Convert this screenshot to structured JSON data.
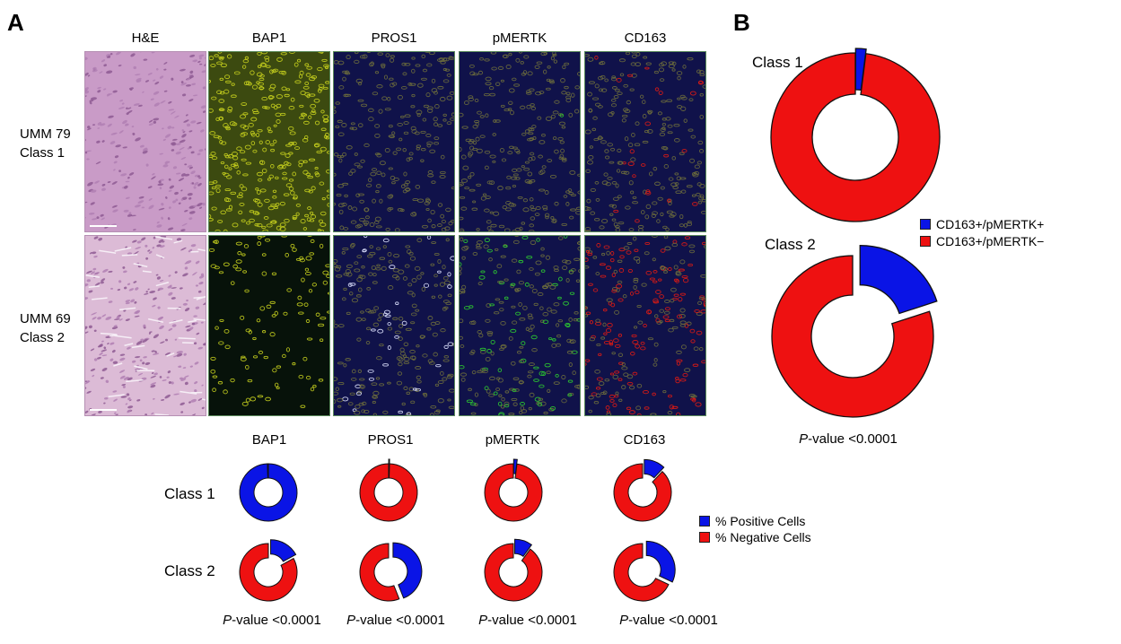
{
  "panel_a": {
    "letter": "A",
    "column_headers": [
      "H&E",
      "BAP1",
      "PROS1",
      "pMERTK",
      "CD163"
    ],
    "row_labels": [
      {
        "line1": "UMM 79",
        "line2": "Class 1"
      },
      {
        "line1": "UMM 69",
        "line2": "Class 2"
      }
    ],
    "donut_headers": [
      "BAP1",
      "PROS1",
      "pMERTK",
      "CD163"
    ],
    "class_labels": [
      "Class 1",
      "Class 2"
    ],
    "legend": [
      {
        "label": "% Positive Cells",
        "color": "#0a14e6"
      },
      {
        "label": "% Negative Cells",
        "color": "#ee1111"
      }
    ],
    "pvalues": [
      {
        "italic": "P",
        "rest": "-value <0.0001"
      },
      {
        "italic": "P",
        "rest": "-value <0.0001"
      },
      {
        "italic": "P",
        "rest": "-value <0.0001"
      },
      {
        "italic": "P",
        "rest": "-value <0.0001"
      }
    ]
  },
  "panel_b": {
    "letter": "B",
    "class_labels": [
      "Class 1",
      "Class 2"
    ],
    "legend": [
      {
        "label": "CD163+/pMERTK+",
        "color": "#0a14e6"
      },
      {
        "label": "CD163+/pMERTK−",
        "color": "#ee1111"
      }
    ],
    "pvalue": {
      "italic": "P",
      "rest": "-value <0.0001"
    }
  },
  "colors": {
    "positive": "#0a14e6",
    "negative": "#ee1111"
  },
  "chart_data": [
    {
      "type": "pie",
      "name": "BAP1 Class 1",
      "values": [
        99.5,
        0.5
      ],
      "labels": [
        "% Positive Cells",
        "% Negative Cells"
      ]
    },
    {
      "type": "pie",
      "name": "PROS1 Class 1",
      "values": [
        0.5,
        99.5
      ],
      "labels": [
        "% Positive Cells",
        "% Negative Cells"
      ]
    },
    {
      "type": "pie",
      "name": "pMERTK Class 1",
      "values": [
        2,
        98
      ],
      "labels": [
        "% Positive Cells",
        "% Negative Cells"
      ]
    },
    {
      "type": "pie",
      "name": "CD163 Class 1",
      "values": [
        12,
        88
      ],
      "labels": [
        "% Positive Cells",
        "% Negative Cells"
      ]
    },
    {
      "type": "pie",
      "name": "BAP1 Class 2",
      "values": [
        17,
        83
      ],
      "labels": [
        "% Positive Cells",
        "% Negative Cells"
      ]
    },
    {
      "type": "pie",
      "name": "PROS1 Class 2",
      "values": [
        44,
        56
      ],
      "labels": [
        "% Positive Cells",
        "% Negative Cells"
      ]
    },
    {
      "type": "pie",
      "name": "pMERTK Class 2",
      "values": [
        10,
        90
      ],
      "labels": [
        "% Positive Cells",
        "% Negative Cells"
      ]
    },
    {
      "type": "pie",
      "name": "CD163 Class 2",
      "values": [
        32,
        68
      ],
      "labels": [
        "% Positive Cells",
        "% Negative Cells"
      ]
    },
    {
      "type": "pie",
      "name": "B Class 1",
      "values": [
        2,
        98
      ],
      "labels": [
        "CD163+/pMERTK+",
        "CD163+/pMERTK−"
      ]
    },
    {
      "type": "pie",
      "name": "B Class 2",
      "values": [
        20,
        80
      ],
      "labels": [
        "CD163+/pMERTK+",
        "CD163+/pMERTK−"
      ]
    }
  ]
}
